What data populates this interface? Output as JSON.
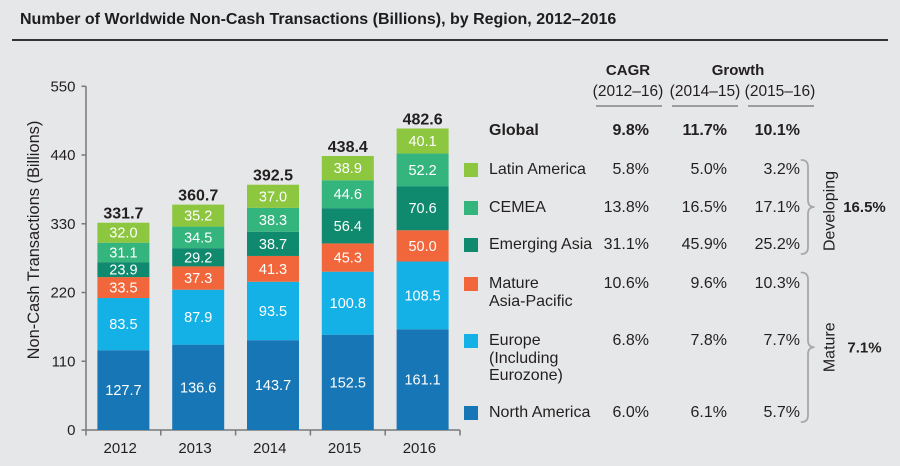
{
  "title": "Number of Worldwide Non-Cash Transactions (Billions), by Region, 2012–2016",
  "chart_data": {
    "type": "bar",
    "stacked": true,
    "title": "Number of Worldwide Non-Cash Transactions (Billions), by Region, 2012–2016",
    "xlabel": "",
    "ylabel": "Non-Cash Transactions (Billions)",
    "ylim": [
      0,
      550
    ],
    "yticks": [
      0,
      110,
      220,
      330,
      440,
      550
    ],
    "grid": false,
    "legend_position": "right",
    "categories": [
      "2012",
      "2013",
      "2014",
      "2015",
      "2016"
    ],
    "series": [
      {
        "name": "North America",
        "color": "#1776b5",
        "values": [
          127.7,
          136.6,
          143.7,
          152.5,
          161.1
        ]
      },
      {
        "name": "Europe (Including Eurozone)",
        "color": "#14b1e7",
        "values": [
          83.5,
          87.9,
          93.5,
          100.8,
          108.5
        ]
      },
      {
        "name": "Mature Asia-Pacific",
        "color": "#f1663a",
        "values": [
          33.5,
          37.3,
          41.3,
          45.3,
          50.0
        ]
      },
      {
        "name": "Emerging Asia",
        "color": "#108a6e",
        "values": [
          23.9,
          29.2,
          38.7,
          56.4,
          70.6
        ]
      },
      {
        "name": "CEMEA",
        "color": "#35b57e",
        "values": [
          31.1,
          34.5,
          38.3,
          44.6,
          52.2
        ]
      },
      {
        "name": "Latin America",
        "color": "#8dc63f",
        "values": [
          32.0,
          35.2,
          37.0,
          38.9,
          40.1
        ]
      }
    ],
    "totals": [
      331.7,
      360.7,
      392.5,
      438.4,
      482.6
    ]
  },
  "table": {
    "header": {
      "cagr": "CAGR",
      "cagr_sub": "(2012–16)",
      "growth": "Growth",
      "growth_sub1": "(2014–15)",
      "growth_sub2": "(2015–16)"
    },
    "rows": [
      {
        "label": [
          "Global"
        ],
        "swatch": null,
        "bold": true,
        "cagr": "9.8%",
        "g1": "11.7%",
        "g2": "10.1%"
      },
      {
        "label": [
          "Latin America"
        ],
        "swatch": "#8dc63f",
        "bold": false,
        "cagr": "5.8%",
        "g1": "5.0%",
        "g2": "3.2%"
      },
      {
        "label": [
          "CEMEA"
        ],
        "swatch": "#35b57e",
        "bold": false,
        "cagr": "13.8%",
        "g1": "16.5%",
        "g2": "17.1%"
      },
      {
        "label": [
          "Emerging Asia"
        ],
        "swatch": "#108a6e",
        "bold": false,
        "cagr": "31.1%",
        "g1": "45.9%",
        "g2": "25.2%"
      },
      {
        "label": [
          "Mature",
          "Asia-Pacific"
        ],
        "swatch": "#f1663a",
        "bold": false,
        "cagr": "10.6%",
        "g1": "9.6%",
        "g2": "10.3%"
      },
      {
        "label": [
          "Europe",
          "(Including",
          "Eurozone)"
        ],
        "swatch": "#14b1e7",
        "bold": false,
        "cagr": "6.8%",
        "g1": "7.8%",
        "g2": "7.7%"
      },
      {
        "label": [
          "North America"
        ],
        "swatch": "#1776b5",
        "bold": false,
        "cagr": "6.0%",
        "g1": "6.1%",
        "g2": "5.7%"
      }
    ]
  },
  "groups": [
    {
      "label": "Developing",
      "value": "16.5%"
    },
    {
      "label": "Mature",
      "value": "7.1%"
    }
  ],
  "colors": {
    "background": "#e6e7e8",
    "text": "#231f20",
    "axis": "#77787b",
    "brace": "#a6a8ab",
    "bar_label": "#ffffff"
  }
}
